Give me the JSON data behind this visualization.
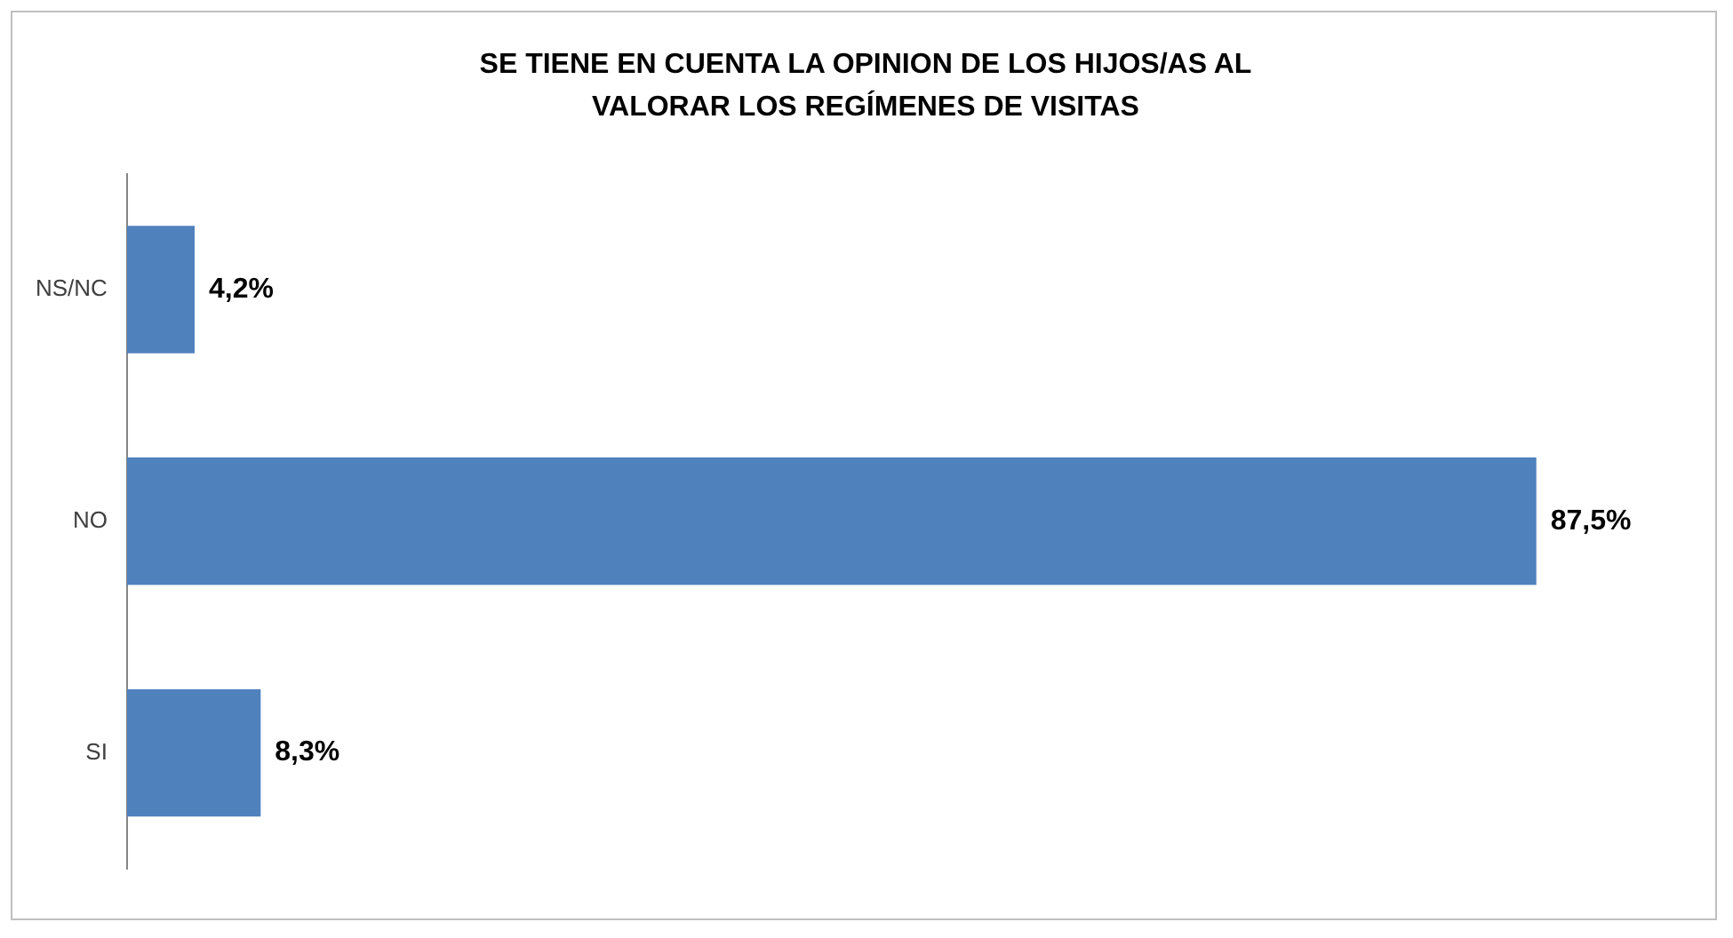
{
  "chart_data": {
    "type": "bar",
    "orientation": "horizontal",
    "title": "SE TIENE EN CUENTA LA OPINION DE LOS HIJOS/AS AL VALORAR LOS REGÍMENES DE VISITAS",
    "categories": [
      "NS/NC",
      "NO",
      "SI"
    ],
    "values": [
      4.2,
      87.5,
      8.3
    ],
    "value_labels": [
      "4,2%",
      "87,5%",
      "8,3%"
    ],
    "color": "#4f81bd",
    "grid": false,
    "legend": false,
    "tick_labels": "y"
  }
}
